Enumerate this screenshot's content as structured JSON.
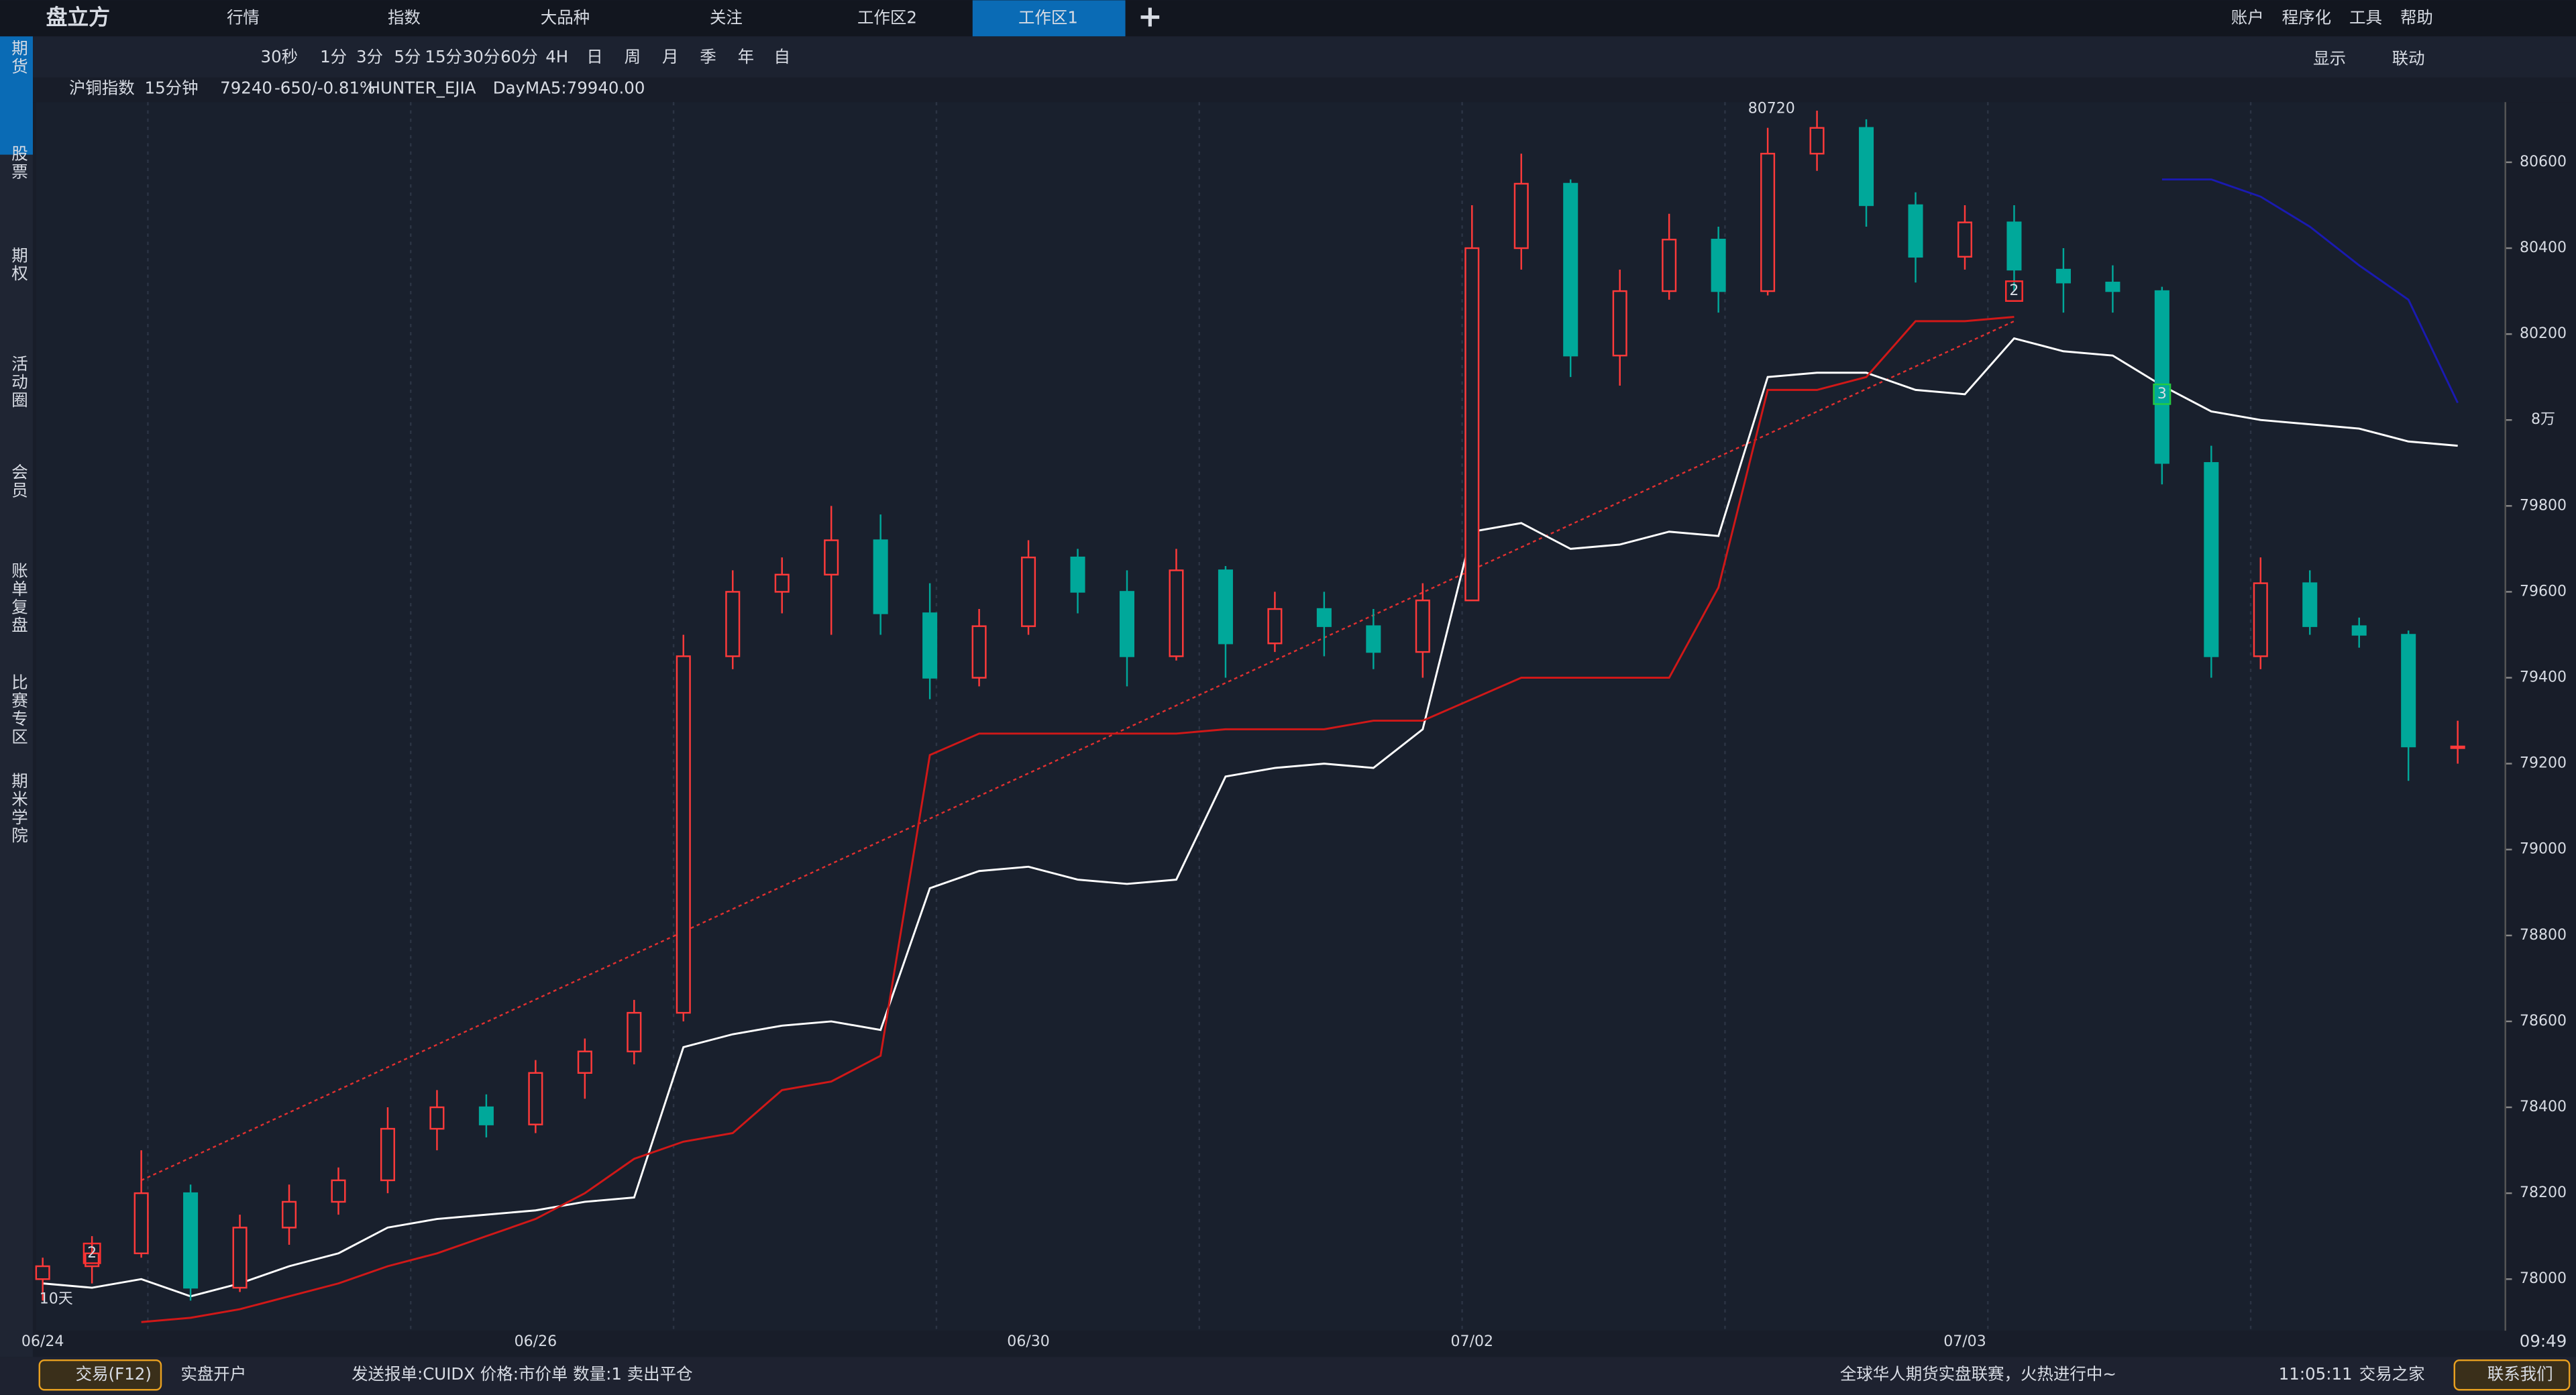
{
  "header": {
    "logo": "盘立方",
    "tabs": [
      "行情",
      "指数",
      "大品种",
      "关注",
      "工作区2",
      "工作区1"
    ],
    "menu": [
      "账户",
      "程序化",
      "工具",
      "帮助"
    ]
  },
  "toolbar": {
    "periods": [
      "30秒",
      "1分",
      "3分",
      "5分",
      "15分",
      "30分",
      "60分",
      "4H",
      "日",
      "周",
      "月",
      "季",
      "年",
      "自"
    ],
    "display": "显示",
    "link": "联动"
  },
  "sidebar": [
    "期货",
    "股票",
    "期权",
    "活动圈",
    "会员",
    "账单复盘",
    "比赛专区",
    "期米学院"
  ],
  "chart_info": {
    "symbol": "沪铜指数",
    "period": "15分钟",
    "price": 79240,
    "change": "-650/-0.81%",
    "indicator": "HUNTER_EJIA",
    "ma": "DayMA5:79940.00"
  },
  "chart_data": {
    "type": "candlestick",
    "up_color": "#ff3a3a",
    "down_color": "#00a89a",
    "categories": [
      "06/24",
      null,
      null,
      null,
      null,
      null,
      null,
      null,
      null,
      null,
      "06/26",
      null,
      null,
      null,
      null,
      null,
      null,
      null,
      null,
      null,
      "06/30",
      null,
      null,
      null,
      null,
      null,
      null,
      null,
      null,
      "07/02",
      null,
      null,
      null,
      null,
      null,
      null,
      null,
      null,
      null,
      "07/03",
      null,
      null,
      null,
      null,
      null,
      null,
      null,
      null,
      null,
      null
    ],
    "open": [
      78000,
      78030,
      78060,
      78200,
      77980,
      78120,
      78180,
      78230,
      78350,
      78400,
      78360,
      78480,
      78530,
      78620,
      79450,
      79600,
      79640,
      79720,
      79550,
      79400,
      79520,
      79680,
      79600,
      79450,
      79650,
      79480,
      79560,
      79520,
      79460,
      79580,
      80400,
      80550,
      80150,
      80300,
      80420,
      80300,
      80620,
      80680,
      80500,
      80380,
      80460,
      80350,
      80320,
      80300,
      79900,
      79450,
      79620,
      79520,
      79500,
      79240
    ],
    "high": [
      78050,
      78100,
      78300,
      78220,
      78150,
      78220,
      78260,
      78400,
      78440,
      78430,
      78510,
      78560,
      78650,
      79500,
      79650,
      79680,
      79800,
      79780,
      79620,
      79560,
      79720,
      79700,
      79650,
      79700,
      79660,
      79600,
      79600,
      79560,
      79620,
      80500,
      80620,
      80560,
      80350,
      80480,
      80450,
      80680,
      80720,
      80700,
      80530,
      80500,
      80500,
      80400,
      80360,
      80310,
      79940,
      79680,
      79650,
      79540,
      79510,
      79300
    ],
    "low": [
      77950,
      77990,
      78050,
      77950,
      77970,
      78080,
      78150,
      78200,
      78300,
      78330,
      78340,
      78420,
      78500,
      78600,
      79420,
      79550,
      79500,
      79500,
      79350,
      79380,
      79500,
      79550,
      79380,
      79440,
      79400,
      79460,
      79450,
      79420,
      79400,
      79580,
      80350,
      80100,
      80080,
      80280,
      80250,
      80290,
      80580,
      80450,
      80320,
      80350,
      80300,
      80250,
      80250,
      79850,
      79400,
      79420,
      79500,
      79470,
      79160,
      79200
    ],
    "close": [
      78030,
      78060,
      78200,
      77980,
      78120,
      78180,
      78230,
      78350,
      78400,
      78360,
      78480,
      78530,
      78620,
      79450,
      79600,
      79640,
      79720,
      79550,
      79400,
      79520,
      79680,
      79600,
      79450,
      79650,
      79480,
      79560,
      79520,
      79460,
      79580,
      80400,
      80550,
      80150,
      80300,
      80420,
      80300,
      80620,
      80680,
      80500,
      80380,
      80460,
      80350,
      80320,
      80300,
      79900,
      79450,
      79620,
      79520,
      79500,
      79240,
      79240
    ],
    "lines": [
      {
        "color": "#ffffff",
        "values": [
          77990,
          77980,
          78000,
          77960,
          77990,
          78030,
          78060,
          78120,
          78140,
          78150,
          78160,
          78180,
          78190,
          78540,
          78570,
          78590,
          78600,
          78580,
          78910,
          78950,
          78960,
          78930,
          78920,
          78930,
          79170,
          79190,
          79200,
          79190,
          79280,
          79740,
          79760,
          79700,
          79710,
          79740,
          79730,
          80100,
          80110,
          80110,
          80070,
          80060,
          80190,
          80160,
          80150,
          80080,
          80020,
          80000,
          79990,
          79980,
          79950,
          79940
        ]
      },
      {
        "color": "#d01818",
        "values": [
          null,
          null,
          77900,
          77910,
          77930,
          77960,
          77990,
          78030,
          78060,
          78100,
          78140,
          78200,
          78280,
          78320,
          78340,
          78440,
          78460,
          78520,
          79220,
          79270,
          79270,
          79270,
          79270,
          79270,
          79280,
          79280,
          79280,
          79300,
          79300,
          79350,
          79400,
          79400,
          79400,
          79400,
          79610,
          80070,
          80070,
          80100,
          80230,
          80230,
          80240,
          null,
          null,
          null,
          null,
          null,
          null,
          null,
          null,
          null
        ]
      },
      {
        "color": "#1a1ab0",
        "values": [
          null,
          null,
          null,
          null,
          null,
          null,
          null,
          null,
          null,
          null,
          null,
          null,
          null,
          null,
          null,
          null,
          null,
          null,
          null,
          null,
          null,
          null,
          null,
          null,
          null,
          null,
          null,
          null,
          null,
          null,
          null,
          null,
          null,
          null,
          null,
          null,
          null,
          null,
          null,
          null,
          null,
          null,
          null,
          80560,
          80560,
          80520,
          80450,
          80360,
          80280,
          80040
        ]
      }
    ],
    "trendline": {
      "color": "#e03030",
      "x": [
        2,
        40
      ],
      "values": [
        78230,
        80230
      ]
    },
    "signals": [
      {
        "label": 2,
        "x": 1,
        "value": 78060,
        "color": "#ff3030"
      },
      {
        "label": 2,
        "x": 40,
        "value": 80300,
        "color": "#ff3030"
      },
      {
        "label": 3,
        "x": 43,
        "value": 80060,
        "color": "#22cc44"
      }
    ],
    "annotations": [
      {
        "text": "80720",
        "x": 36,
        "value": 80720
      },
      {
        "text": "10天",
        "x": 0,
        "value": 77930
      }
    ],
    "ylim": [
      77880,
      80740
    ],
    "yticks": [
      78000,
      78200,
      78400,
      78600,
      78800,
      79000,
      79200,
      79400,
      79600,
      79800,
      {
        "value": 80000,
        "label": "8万"
      },
      80200,
      80400,
      80600
    ],
    "time_label": "09:49"
  },
  "status_bar": {
    "trade": "交易(F12)",
    "open_account": "实盘开户",
    "order": "发送报单:CUIDX 价格:市价单  数量:1 卖出平仓",
    "promo": "全球华人期货实盘联赛，火热进行中~",
    "clock": "11:05:11",
    "home": "交易之家",
    "contact": "联系我们"
  }
}
